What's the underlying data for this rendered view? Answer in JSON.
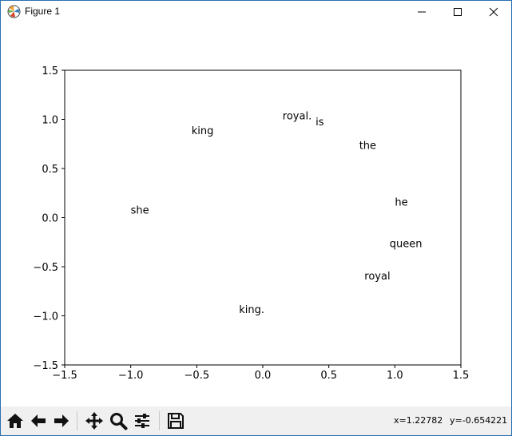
{
  "window": {
    "title": "Figure 1"
  },
  "toolbar": {
    "buttons": [
      {
        "name": "home-icon"
      },
      {
        "name": "back-arrow-icon"
      },
      {
        "name": "forward-arrow-icon"
      },
      {
        "name": "pan-icon"
      },
      {
        "name": "zoom-icon"
      },
      {
        "name": "configure-subplots-icon"
      },
      {
        "name": "save-icon"
      }
    ],
    "x_readout": "x=1.22782",
    "y_readout": "y=-0.654221"
  },
  "chart_data": {
    "type": "scatter",
    "title": "",
    "xlabel": "",
    "ylabel": "",
    "xlim": [
      -1.5,
      1.5
    ],
    "ylim": [
      -1.5,
      1.5
    ],
    "xticks": [
      "−1.5",
      "−1.0",
      "−0.5",
      "0.0",
      "0.5",
      "1.0",
      "1.5"
    ],
    "yticks": [
      "1.5",
      "1.0",
      "0.5",
      "0.0",
      "−0.5",
      "−1.0",
      "−1.5"
    ],
    "grid": false,
    "points": [
      {
        "label": "royal.",
        "x": 0.15,
        "y": 1.0
      },
      {
        "label": "is",
        "x": 0.4,
        "y": 0.94
      },
      {
        "label": "king",
        "x": -0.54,
        "y": 0.85
      },
      {
        "label": "the",
        "x": 0.73,
        "y": 0.7
      },
      {
        "label": "he",
        "x": 1.0,
        "y": 0.12
      },
      {
        "label": "she",
        "x": -1.0,
        "y": 0.04
      },
      {
        "label": "queen",
        "x": 0.96,
        "y": -0.3
      },
      {
        "label": "royal",
        "x": 0.77,
        "y": -0.63
      },
      {
        "label": "king.",
        "x": -0.18,
        "y": -0.97
      }
    ]
  }
}
